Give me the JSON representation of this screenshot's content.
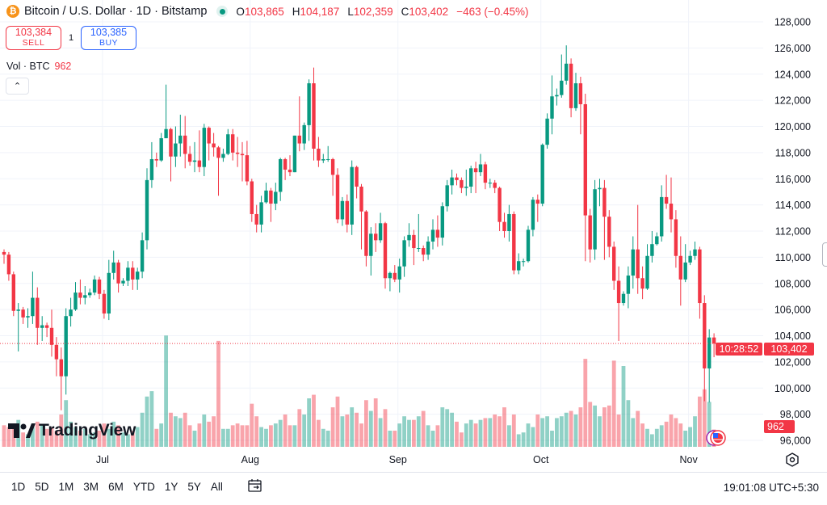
{
  "header": {
    "symbol_icon": "bitcoin-icon",
    "title": "Bitcoin / U.S. Dollar · 1D · Bitstamp",
    "ohlc": {
      "o_label": "O",
      "o": "103,865",
      "h_label": "H",
      "h": "104,187",
      "l_label": "L",
      "l": "102,359",
      "c_label": "C",
      "c": "103,402",
      "change": "−463 (−0.45%)"
    }
  },
  "trade": {
    "sell_price": "103,384",
    "sell_label": "SELL",
    "quantity": "1",
    "buy_price": "103,385",
    "buy_label": "BUY"
  },
  "volume_legend": {
    "label": "Vol · BTC",
    "value": "962"
  },
  "logo": "TradingView",
  "price_tag": {
    "price": "103,402",
    "countdown": "10:28:52"
  },
  "volume_tag": "962",
  "bottom_bar": {
    "ranges": [
      "1D",
      "5D",
      "1M",
      "3M",
      "6M",
      "YTD",
      "1Y",
      "5Y",
      "All"
    ],
    "clock": "19:01:08 UTC+5:30"
  },
  "colors": {
    "up": "#089981",
    "down": "#f23645",
    "grid": "#f0f3fa",
    "accent_buy": "#2962ff"
  },
  "chart_data": {
    "type": "candlestick",
    "interval": "1D",
    "yaxis": {
      "ylim": [
        96000,
        128000
      ],
      "ticks": [
        "128,000",
        "126,000",
        "124,000",
        "122,000",
        "120,000",
        "118,000",
        "116,000",
        "114,000",
        "112,000",
        "110,000",
        "108,000",
        "106,000",
        "104,000",
        "102,000",
        "100,000",
        "98,000",
        "96,000"
      ],
      "tick_values": [
        128000,
        126000,
        124000,
        122000,
        120000,
        118000,
        116000,
        114000,
        112000,
        110000,
        108000,
        106000,
        104000,
        102000,
        100000,
        98000,
        96000
      ]
    },
    "x_ticks": [
      {
        "label": "Jul",
        "candle_index": 21
      },
      {
        "label": "Aug",
        "candle_index": 52
      },
      {
        "label": "Sep",
        "candle_index": 83
      },
      {
        "label": "Oct",
        "candle_index": 113
      },
      {
        "label": "Nov",
        "candle_index": 144
      }
    ],
    "grid": true,
    "last_price": 103402,
    "open": [
      110400,
      110200,
      108700,
      105900,
      106000,
      105400,
      105500,
      106900,
      104600,
      104800,
      104600,
      103300,
      102200,
      100900,
      105500,
      106000,
      107300,
      106900,
      107100,
      107300,
      108300,
      107200,
      105700,
      108800,
      109600,
      108000,
      108200,
      109200,
      108300,
      108900,
      111300,
      115900,
      117500,
      117400,
      119100,
      119800,
      117700,
      118700,
      119300,
      117900,
      117300,
      117400,
      116900,
      119900,
      118700,
      118400,
      117600,
      117900,
      119400,
      118000,
      117900,
      117800,
      115800,
      113300,
      112500,
      114200,
      115100,
      114100,
      115000,
      117500,
      116700,
      116500,
      119300,
      118700,
      120100,
      123300,
      118300,
      117400,
      117500,
      117500,
      116300,
      112900,
      114300,
      112500,
      116900,
      115400,
      113500,
      110100,
      111800,
      111300,
      112600,
      108400,
      108800,
      108300,
      109300,
      111300,
      111700,
      110700,
      110700,
      110200,
      111200,
      112100,
      111500,
      113900,
      115500,
      116100,
      115900,
      115300,
      115400,
      116800,
      116500,
      117100,
      115700,
      115700,
      115300,
      112700,
      112000,
      113300,
      109000,
      109700,
      109700,
      112100,
      114400,
      114100,
      118600,
      120600,
      122300,
      122400,
      123500,
      124800,
      121400,
      123300,
      121700,
      113200,
      110600,
      115200,
      115300,
      113100,
      110800,
      108200,
      106500,
      107200,
      108600,
      110600,
      108400,
      107600,
      110100,
      111000,
      111600,
      114600,
      114100,
      112900,
      110100,
      108300,
      109600,
      110100,
      110600,
      106500,
      101500,
      103865
    ],
    "high": [
      110600,
      110400,
      108900,
      106500,
      106200,
      106100,
      108900,
      107700,
      105500,
      105000,
      106000,
      103900,
      103100,
      106100,
      106900,
      108100,
      108300,
      107800,
      107600,
      108600,
      108500,
      107500,
      109800,
      110500,
      109800,
      108400,
      109700,
      109700,
      109200,
      111900,
      116800,
      118800,
      118000,
      119500,
      123200,
      119900,
      120000,
      120900,
      120800,
      118500,
      118800,
      119700,
      120200,
      120000,
      119500,
      118500,
      118300,
      119800,
      119800,
      119200,
      118800,
      118900,
      116000,
      114000,
      114700,
      115700,
      115300,
      115700,
      117600,
      117600,
      117800,
      119300,
      122300,
      120300,
      123600,
      124500,
      119200,
      117900,
      118500,
      117600,
      116800,
      114600,
      114800,
      117400,
      117000,
      115600,
      113600,
      112300,
      112600,
      113400,
      112700,
      108900,
      109400,
      109900,
      111600,
      112600,
      112100,
      113300,
      110900,
      111600,
      112900,
      113200,
      114200,
      115900,
      116700,
      116400,
      116100,
      116700,
      117000,
      117300,
      117900,
      117300,
      116000,
      115900,
      115400,
      113400,
      114000,
      113500,
      110300,
      109900,
      112400,
      114600,
      114800,
      118700,
      121000,
      123900,
      122900,
      125500,
      126200,
      125200,
      124100,
      123800,
      122500,
      113700,
      115900,
      116000,
      115900,
      113600,
      111200,
      109300,
      107400,
      109300,
      111600,
      114000,
      109300,
      111000,
      112000,
      111900,
      115500,
      116300,
      116100,
      113600,
      111600,
      111000,
      110500,
      111200,
      110800,
      107100,
      104500,
      104187
    ],
    "low": [
      109500,
      108200,
      105500,
      102800,
      104900,
      104600,
      104900,
      103300,
      103600,
      103900,
      102400,
      100900,
      98300,
      99500,
      104700,
      105900,
      106400,
      106400,
      106900,
      107100,
      106800,
      105300,
      105200,
      108300,
      107300,
      107800,
      107800,
      107500,
      107500,
      108400,
      110600,
      115300,
      116900,
      117300,
      119100,
      115800,
      116900,
      117700,
      116800,
      117000,
      116500,
      116500,
      116200,
      117400,
      117700,
      114700,
      117300,
      117800,
      117400,
      116900,
      115800,
      115500,
      112700,
      111900,
      111900,
      114100,
      112700,
      113600,
      114300,
      115900,
      116200,
      116500,
      118100,
      118200,
      118900,
      117400,
      116900,
      117200,
      117300,
      114700,
      112600,
      112400,
      111900,
      111700,
      114500,
      110600,
      109300,
      108600,
      110400,
      111100,
      107600,
      107400,
      108100,
      107300,
      108500,
      110800,
      109400,
      110400,
      109700,
      109800,
      110600,
      110800,
      110900,
      113500,
      114800,
      115500,
      114900,
      114700,
      114900,
      114900,
      116200,
      115200,
      115300,
      114900,
      112000,
      111500,
      111200,
      108700,
      108700,
      109300,
      109600,
      111600,
      112700,
      113900,
      118300,
      119400,
      121600,
      122200,
      123200,
      120700,
      121200,
      119400,
      109700,
      109600,
      109800,
      113900,
      109800,
      110000,
      107500,
      103600,
      106300,
      106100,
      107600,
      107200,
      106800,
      107500,
      109600,
      110900,
      111200,
      113700,
      111900,
      109200,
      106300,
      108100,
      109400,
      109800,
      105300,
      99000,
      98900,
      102359
    ],
    "close": [
      110200,
      108700,
      105900,
      106000,
      105400,
      105500,
      106900,
      104600,
      104800,
      104600,
      103300,
      102200,
      100900,
      105500,
      106000,
      107300,
      106900,
      107100,
      107300,
      108300,
      107200,
      105700,
      108800,
      109600,
      108000,
      108200,
      109200,
      108300,
      108900,
      111300,
      115900,
      117500,
      117400,
      119100,
      119800,
      117700,
      118700,
      119300,
      117900,
      117300,
      117400,
      116900,
      119900,
      118700,
      118400,
      117600,
      117900,
      119400,
      118000,
      117900,
      117800,
      115800,
      113300,
      112500,
      114200,
      115100,
      114100,
      115000,
      117500,
      116700,
      116500,
      119300,
      118700,
      120100,
      123300,
      118300,
      117400,
      117500,
      117500,
      116300,
      112900,
      114300,
      112500,
      116900,
      115400,
      113500,
      110100,
      111800,
      111300,
      112600,
      108400,
      108800,
      108300,
      109300,
      111300,
      111700,
      110700,
      110700,
      110200,
      111200,
      112100,
      111500,
      113900,
      115500,
      116100,
      115900,
      115300,
      115400,
      116800,
      116500,
      117100,
      115700,
      115700,
      115300,
      112700,
      112000,
      113300,
      109000,
      109700,
      109700,
      112100,
      114400,
      114100,
      118600,
      120600,
      122300,
      122400,
      123500,
      124800,
      121400,
      123300,
      121700,
      113200,
      110600,
      115200,
      115300,
      113100,
      110800,
      108200,
      106500,
      107200,
      108600,
      110600,
      108400,
      107600,
      110100,
      111000,
      111600,
      114600,
      114100,
      112900,
      110100,
      108300,
      109600,
      110100,
      110600,
      106500,
      101500,
      103865,
      103402
    ],
    "volume": [
      1200,
      1100,
      1300,
      1500,
      800,
      700,
      1100,
      1400,
      1200,
      1000,
      1100,
      900,
      1800,
      2600,
      1400,
      1100,
      900,
      1000,
      700,
      800,
      900,
      1300,
      1000,
      1400,
      1200,
      800,
      700,
      900,
      1100,
      1900,
      2800,
      3100,
      1000,
      1300,
      6200,
      1900,
      1700,
      1600,
      1900,
      1200,
      900,
      1300,
      1800,
      1400,
      1700,
      5900,
      1000,
      1000,
      1200,
      1300,
      1200,
      1200,
      2400,
      1700,
      1100,
      1000,
      1200,
      1300,
      1500,
      1800,
      1200,
      1200,
      2100,
      1800,
      2700,
      2900,
      1500,
      1000,
      900,
      2200,
      2800,
      1700,
      1800,
      2200,
      1900,
      1300,
      2600,
      2000,
      2700,
      1600,
      2100,
      900,
      900,
      1300,
      1700,
      1500,
      1500,
      1700,
      2000,
      1200,
      900,
      1200,
      2200,
      2100,
      1900,
      1400,
      800,
      1300,
      1500,
      1300,
      1500,
      1600,
      1600,
      1800,
      1700,
      2200,
      1200,
      1800,
      700,
      800,
      1300,
      1100,
      1800,
      1600,
      1700,
      900,
      1600,
      1700,
      1900,
      2000,
      1800,
      2200,
      4900,
      2500,
      2300,
      1700,
      2200,
      2300,
      4800,
      1800,
      4500,
      2600,
      1600,
      2000,
      1300,
      1000,
      700,
      1000,
      1200,
      1400,
      1800,
      1600,
      1300,
      900,
      1100,
      1700,
      2800,
      3200,
      2500,
      962
    ]
  }
}
